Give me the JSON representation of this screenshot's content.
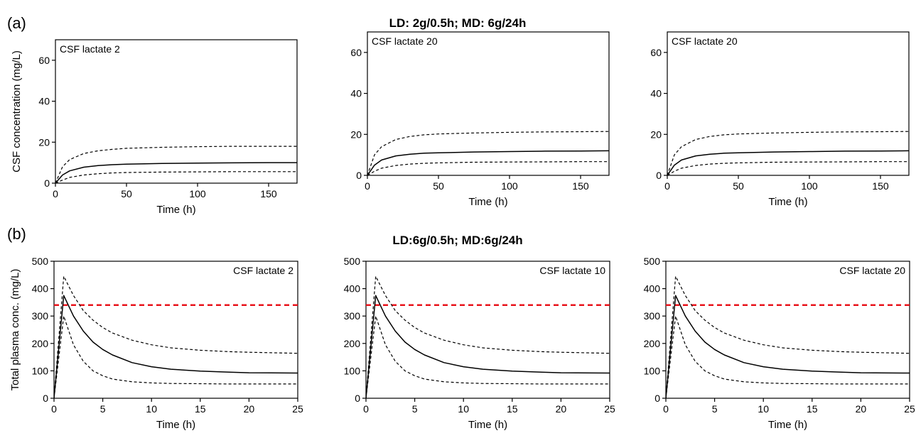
{
  "figure": {
    "panel_a_label": "(a)",
    "panel_b_label": "(b)",
    "row_a_title": "LD: 2g/0.5h; MD: 6g/24h",
    "row_b_title": "LD:6g/0.5h; MD:6g/24h"
  },
  "colors": {
    "line": "#000000",
    "threshold": "#e8131b",
    "axis": "#000000"
  },
  "chart_data": [
    {
      "type": "line",
      "row": "a",
      "title": "CSF lactate 2",
      "title_position": "top-left",
      "xlabel": "Time (h)",
      "ylabel": "CSF concentration (mg/L)",
      "xlim": [
        0,
        170
      ],
      "ylim": [
        0,
        70
      ],
      "xticks": [
        0,
        50,
        100,
        150
      ],
      "yticks": [
        0,
        20,
        40,
        60
      ],
      "series": [
        {
          "style": "solid",
          "x": [
            0,
            5,
            10,
            20,
            30,
            40,
            50,
            75,
            100,
            125,
            150,
            170
          ],
          "y": [
            0,
            4,
            6,
            7.8,
            8.6,
            9,
            9.3,
            9.6,
            9.8,
            9.9,
            10,
            10
          ]
        },
        {
          "style": "dashed",
          "x": [
            0,
            5,
            10,
            20,
            30,
            40,
            50,
            75,
            100,
            125,
            150,
            170
          ],
          "y": [
            0,
            8,
            11.5,
            14.5,
            15.8,
            16.5,
            17,
            17.5,
            17.8,
            18,
            18,
            18
          ]
        },
        {
          "style": "dashed",
          "x": [
            0,
            5,
            10,
            20,
            30,
            40,
            50,
            75,
            100,
            125,
            150,
            170
          ],
          "y": [
            0,
            1.5,
            2.8,
            4,
            4.6,
            5,
            5.2,
            5.4,
            5.5,
            5.6,
            5.6,
            5.6
          ]
        }
      ]
    },
    {
      "type": "line",
      "row": "a",
      "title": "CSF lactate 20",
      "title_position": "top-left",
      "xlabel": "Time (h)",
      "ylabel": "",
      "xlim": [
        0,
        170
      ],
      "ylim": [
        0,
        70
      ],
      "xticks": [
        0,
        50,
        100,
        150
      ],
      "yticks": [
        0,
        20,
        40,
        60
      ],
      "series": [
        {
          "style": "solid",
          "x": [
            0,
            5,
            10,
            20,
            30,
            40,
            50,
            75,
            100,
            125,
            150,
            170
          ],
          "y": [
            0,
            5,
            7.5,
            9.5,
            10.3,
            10.8,
            11,
            11.4,
            11.6,
            11.8,
            11.9,
            12
          ]
        },
        {
          "style": "dashed",
          "x": [
            0,
            5,
            10,
            20,
            30,
            40,
            50,
            75,
            100,
            125,
            150,
            170
          ],
          "y": [
            0,
            10,
            14,
            17.5,
            19,
            19.8,
            20.2,
            20.7,
            21,
            21.2,
            21.3,
            21.4
          ]
        },
        {
          "style": "dashed",
          "x": [
            0,
            5,
            10,
            20,
            30,
            40,
            50,
            75,
            100,
            125,
            150,
            170
          ],
          "y": [
            0,
            2,
            3.5,
            4.8,
            5.5,
            5.9,
            6.1,
            6.4,
            6.5,
            6.6,
            6.7,
            6.7
          ]
        }
      ]
    },
    {
      "type": "line",
      "row": "a",
      "title": "CSF lactate 20",
      "title_position": "top-left",
      "xlabel": "Time (h)",
      "ylabel": "",
      "xlim": [
        0,
        170
      ],
      "ylim": [
        0,
        70
      ],
      "xticks": [
        0,
        50,
        100,
        150
      ],
      "yticks": [
        0,
        20,
        40,
        60
      ],
      "series": [
        {
          "style": "solid",
          "x": [
            0,
            5,
            10,
            20,
            30,
            40,
            50,
            75,
            100,
            125,
            150,
            170
          ],
          "y": [
            0,
            5,
            7.5,
            9.5,
            10.3,
            10.8,
            11,
            11.4,
            11.6,
            11.8,
            11.9,
            12
          ]
        },
        {
          "style": "dashed",
          "x": [
            0,
            5,
            10,
            20,
            30,
            40,
            50,
            75,
            100,
            125,
            150,
            170
          ],
          "y": [
            0,
            10,
            14,
            17.5,
            19,
            19.8,
            20.2,
            20.7,
            21,
            21.2,
            21.3,
            21.4
          ]
        },
        {
          "style": "dashed",
          "x": [
            0,
            5,
            10,
            20,
            30,
            40,
            50,
            75,
            100,
            125,
            150,
            170
          ],
          "y": [
            0,
            2,
            3.5,
            4.8,
            5.5,
            5.9,
            6.1,
            6.4,
            6.5,
            6.6,
            6.7,
            6.7
          ]
        }
      ]
    },
    {
      "type": "line",
      "row": "b",
      "title": "CSF lactate 2",
      "title_position": "top-right",
      "xlabel": "Time (h)",
      "ylabel": "Total plasma conc. (mg/L)",
      "xlim": [
        0,
        25
      ],
      "ylim": [
        0,
        500
      ],
      "xticks": [
        0,
        5,
        10,
        15,
        20,
        25
      ],
      "yticks": [
        0,
        100,
        200,
        300,
        400,
        500
      ],
      "threshold": 340,
      "series": [
        {
          "style": "solid",
          "x": [
            0,
            1,
            2,
            3,
            4,
            5,
            6,
            8,
            10,
            12,
            15,
            18,
            20,
            25
          ],
          "y": [
            0,
            375,
            300,
            245,
            205,
            178,
            158,
            130,
            115,
            106,
            99,
            95,
            93,
            92
          ]
        },
        {
          "style": "dashed",
          "x": [
            0,
            1,
            2,
            3,
            4,
            5,
            6,
            8,
            10,
            12,
            15,
            18,
            20,
            25
          ],
          "y": [
            0,
            445,
            375,
            320,
            285,
            258,
            238,
            212,
            195,
            184,
            175,
            170,
            168,
            164
          ]
        },
        {
          "style": "dashed",
          "x": [
            0,
            1,
            2,
            3,
            4,
            5,
            6,
            8,
            10,
            12,
            15,
            18,
            20,
            25
          ],
          "y": [
            0,
            300,
            195,
            135,
            100,
            82,
            70,
            60,
            56,
            54,
            53,
            52,
            52,
            52
          ]
        }
      ]
    },
    {
      "type": "line",
      "row": "b",
      "title": "CSF lactate 10",
      "title_position": "top-right",
      "xlabel": "Time (h)",
      "ylabel": "",
      "xlim": [
        0,
        25
      ],
      "ylim": [
        0,
        500
      ],
      "xticks": [
        0,
        5,
        10,
        15,
        20,
        25
      ],
      "yticks": [
        0,
        100,
        200,
        300,
        400,
        500
      ],
      "threshold": 340,
      "series": [
        {
          "style": "solid",
          "x": [
            0,
            1,
            2,
            3,
            4,
            5,
            6,
            8,
            10,
            12,
            15,
            18,
            20,
            25
          ],
          "y": [
            0,
            375,
            300,
            245,
            205,
            178,
            158,
            130,
            115,
            106,
            99,
            95,
            93,
            92
          ]
        },
        {
          "style": "dashed",
          "x": [
            0,
            1,
            2,
            3,
            4,
            5,
            6,
            8,
            10,
            12,
            15,
            18,
            20,
            25
          ],
          "y": [
            0,
            445,
            375,
            320,
            285,
            258,
            238,
            212,
            195,
            184,
            175,
            170,
            168,
            164
          ]
        },
        {
          "style": "dashed",
          "x": [
            0,
            1,
            2,
            3,
            4,
            5,
            6,
            8,
            10,
            12,
            15,
            18,
            20,
            25
          ],
          "y": [
            0,
            300,
            195,
            135,
            100,
            82,
            70,
            60,
            56,
            54,
            53,
            52,
            52,
            52
          ]
        }
      ]
    },
    {
      "type": "line",
      "row": "b",
      "title": "CSF lactate 20",
      "title_position": "top-right",
      "xlabel": "Time (h)",
      "ylabel": "",
      "xlim": [
        0,
        25
      ],
      "ylim": [
        0,
        500
      ],
      "xticks": [
        0,
        5,
        10,
        15,
        20,
        25
      ],
      "yticks": [
        0,
        100,
        200,
        300,
        400,
        500
      ],
      "threshold": 340,
      "series": [
        {
          "style": "solid",
          "x": [
            0,
            1,
            2,
            3,
            4,
            5,
            6,
            8,
            10,
            12,
            15,
            18,
            20,
            25
          ],
          "y": [
            0,
            375,
            300,
            245,
            205,
            178,
            158,
            130,
            115,
            106,
            99,
            95,
            93,
            92
          ]
        },
        {
          "style": "dashed",
          "x": [
            0,
            1,
            2,
            3,
            4,
            5,
            6,
            8,
            10,
            12,
            15,
            18,
            20,
            25
          ],
          "y": [
            0,
            445,
            375,
            320,
            285,
            258,
            238,
            212,
            195,
            184,
            175,
            170,
            168,
            164
          ]
        },
        {
          "style": "dashed",
          "x": [
            0,
            1,
            2,
            3,
            4,
            5,
            6,
            8,
            10,
            12,
            15,
            18,
            20,
            25
          ],
          "y": [
            0,
            300,
            195,
            135,
            100,
            82,
            70,
            60,
            56,
            54,
            53,
            52,
            52,
            52
          ]
        }
      ]
    }
  ]
}
